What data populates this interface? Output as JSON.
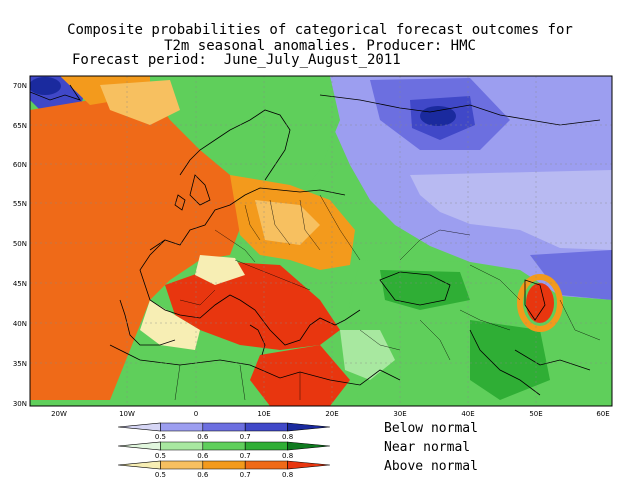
{
  "title": {
    "line1": "Composite probabilities of categorical forecast outcomes for",
    "line2": "T2m seasonal anomalies. Producer: HMC",
    "line3": "Forecast period:  June_July_August_2011"
  },
  "axes": {
    "lat_ticks": [
      "70N",
      "65N",
      "60N",
      "55N",
      "50N",
      "45N",
      "40N",
      "35N",
      "30N"
    ],
    "lon_ticks": [
      "20W",
      "10W",
      "0",
      "10E",
      "20E",
      "30E",
      "40E",
      "50E",
      "60E"
    ],
    "lat_range": [
      30,
      72
    ],
    "lon_range": [
      -25,
      60
    ]
  },
  "legend": {
    "items": [
      {
        "label": "Below normal",
        "colors": [
          "#d6d6f5",
          "#9c9ef0",
          "#6c6fe0",
          "#4048c8",
          "#1a2a9e"
        ],
        "ticks": [
          "0.5",
          "0.6",
          "0.7",
          "0.8"
        ]
      },
      {
        "label": "Near normal",
        "colors": [
          "#e2f7de",
          "#a8e8a0",
          "#5fcf5b",
          "#2fae35",
          "#0f7a1f"
        ],
        "ticks": [
          "0.5",
          "0.6",
          "0.7",
          "0.8"
        ]
      },
      {
        "label": "Above normal",
        "colors": [
          "#f7eeb4",
          "#f7c060",
          "#f39a1c",
          "#ef6a18",
          "#e8360f"
        ],
        "ticks": [
          "0.5",
          "0.6",
          "0.7",
          "0.8"
        ]
      }
    ]
  }
}
